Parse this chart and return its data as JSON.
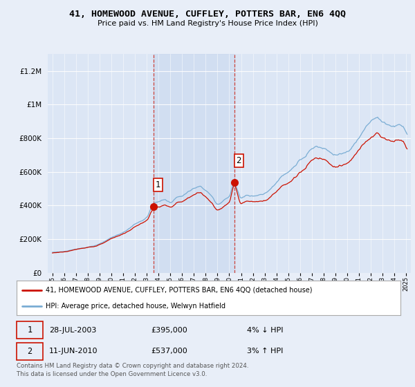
{
  "title": "41, HOMEWOOD AVENUE, CUFFLEY, POTTERS BAR, EN6 4QQ",
  "subtitle": "Price paid vs. HM Land Registry's House Price Index (HPI)",
  "yticks": [
    0,
    200000,
    400000,
    600000,
    800000,
    1000000,
    1200000
  ],
  "ylim": [
    0,
    1300000
  ],
  "xlim_start": 1994.5,
  "xlim_end": 2025.5,
  "bg_color": "#e8eef8",
  "plot_bg_color": "#dce6f5",
  "hpi_color": "#7aadd4",
  "price_color": "#cc1100",
  "sale1_x": 2003.57,
  "sale1_y": 395000,
  "sale2_x": 2010.44,
  "sale2_y": 537000,
  "legend_line1": "41, HOMEWOOD AVENUE, CUFFLEY, POTTERS BAR, EN6 4QQ (detached house)",
  "legend_line2": "HPI: Average price, detached house, Welwyn Hatfield",
  "table_row1": [
    "1",
    "28-JUL-2003",
    "£395,000",
    "4% ↓ HPI"
  ],
  "table_row2": [
    "2",
    "11-JUN-2010",
    "£537,000",
    "3% ↑ HPI"
  ],
  "footer": "Contains HM Land Registry data © Crown copyright and database right 2024.\nThis data is licensed under the Open Government Licence v3.0."
}
